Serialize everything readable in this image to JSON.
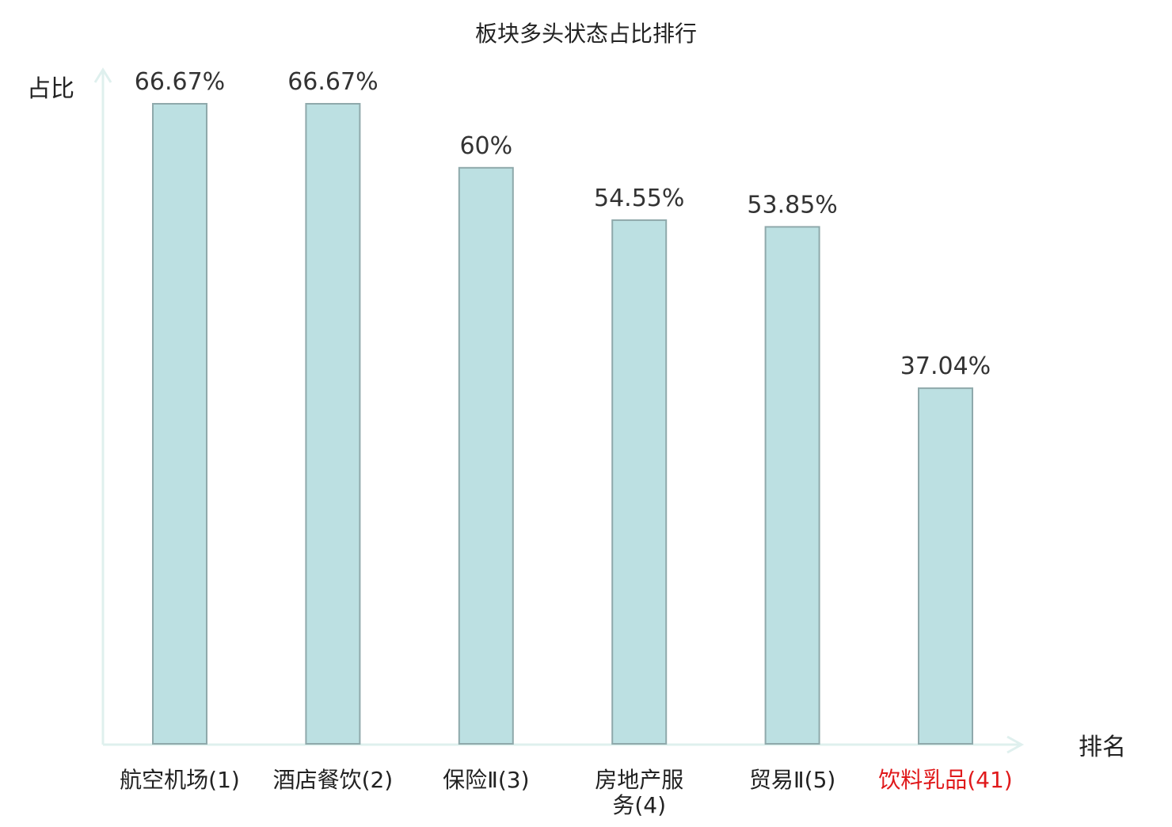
{
  "chart_data": {
    "type": "bar",
    "title": "板块多头状态占比排行",
    "ylabel": "占比",
    "xlabel": "排名",
    "categories": [
      "航空机场(1)",
      "酒店餐饮(2)",
      "保险Ⅱ(3)",
      "房地产服务(4)",
      "贸易Ⅱ(5)",
      "饮料乳品(41)"
    ],
    "category_lines": [
      [
        "航空机场(1)"
      ],
      [
        "酒店餐饮(2)"
      ],
      [
        "保险Ⅱ(3)"
      ],
      [
        "房地产服",
        "务(4)"
      ],
      [
        "贸易Ⅱ(5)"
      ],
      [
        "饮料乳品(41)"
      ]
    ],
    "values": [
      66.67,
      66.67,
      60,
      54.55,
      53.85,
      37.04
    ],
    "value_labels": [
      "66.67%",
      "66.67%",
      "60%",
      "54.55%",
      "53.85%",
      "37.04%"
    ],
    "highlight_index": 5,
    "ylim": [
      0,
      66.67
    ],
    "grid": false,
    "colors": {
      "bar_fill": "#bce0e2",
      "bar_stroke": "#8fa9ab",
      "axis": "#dff0ee",
      "label_text": "#333333",
      "highlight_text": "#e0191b",
      "title_text": "#222222"
    }
  }
}
